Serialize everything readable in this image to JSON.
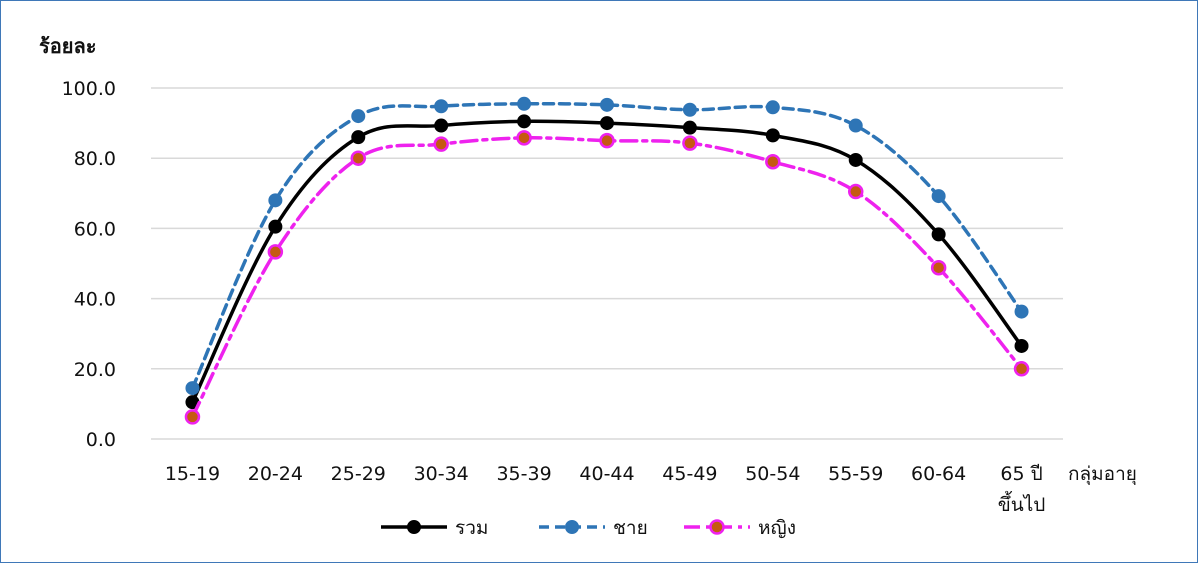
{
  "chart_data": {
    "type": "line",
    "title": "",
    "ylabel": "ร้อยละ",
    "xlabel": "กลุ่มอายุ",
    "categories": [
      "15-19",
      "20-24",
      "25-29",
      "30-34",
      "35-39",
      "40-44",
      "45-49",
      "50-54",
      "55-59",
      "60-64",
      "65 ปี|ขึ้นไป"
    ],
    "ylim": [
      0,
      100
    ],
    "yticks": [
      "0.0",
      "20.0",
      "40.0",
      "60.0",
      "80.0",
      "100.0"
    ],
    "grid": true,
    "legend_position": "bottom",
    "series": [
      {
        "name": "รวม",
        "color": "#000000",
        "dash": "solid",
        "marker_fill": "#000000",
        "values": [
          10.5,
          60.5,
          86.0,
          89.3,
          90.5,
          90.0,
          88.7,
          86.5,
          79.5,
          58.3,
          26.5
        ]
      },
      {
        "name": "ชาย",
        "color": "#2e75b6",
        "dash": "dashed",
        "marker_fill": "#2e75b6",
        "values": [
          14.5,
          68.0,
          92.0,
          94.8,
          95.5,
          95.2,
          93.8,
          94.5,
          89.3,
          69.2,
          36.3
        ]
      },
      {
        "name": "หญิง",
        "color": "#ee22ee",
        "dash": "dashdot",
        "marker_fill": "#c55a11",
        "values": [
          6.3,
          53.3,
          80.0,
          84.0,
          85.8,
          85.0,
          84.3,
          79.0,
          70.5,
          48.8,
          20.0
        ]
      }
    ]
  }
}
